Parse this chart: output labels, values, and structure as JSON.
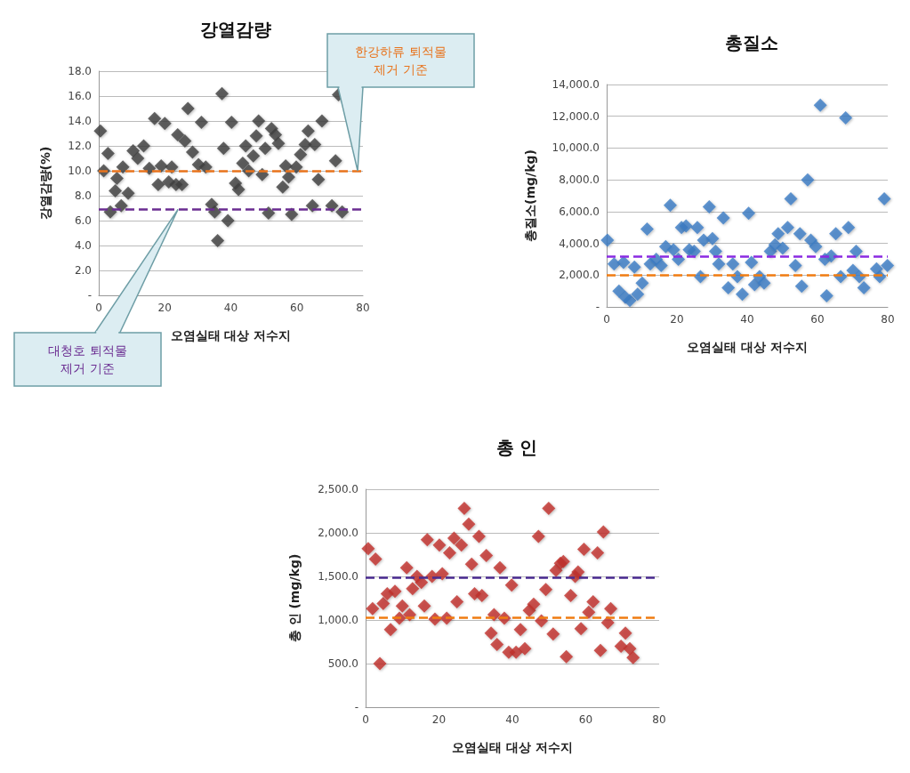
{
  "chart_data": [
    {
      "type": "scatter",
      "title": "강열감량",
      "xlabel": "오염실태 대상 저수지",
      "ylabel": "강열감량(%)",
      "xlim": [
        0,
        80
      ],
      "xticks": [
        0,
        20,
        40,
        60,
        80
      ],
      "ylim": [
        0,
        18
      ],
      "yticks": [
        {
          "value": 0,
          "label": "-"
        },
        {
          "value": 2,
          "label": "2.0"
        },
        {
          "value": 4,
          "label": "4.0"
        },
        {
          "value": 6,
          "label": "6.0"
        },
        {
          "value": 8,
          "label": "8.0"
        },
        {
          "value": 10,
          "label": "10.0"
        },
        {
          "value": 12,
          "label": "12.0"
        },
        {
          "value": 14,
          "label": "14.0"
        },
        {
          "value": 16,
          "label": "16.0"
        },
        {
          "value": 18,
          "label": "18.0"
        }
      ],
      "grid": "y",
      "marker": "diamond",
      "ref_lines": [
        {
          "axis": "y",
          "value": 10,
          "label": "한강하류 퇴적물\n제거 기준",
          "color": "#e8731c",
          "line_style": "dashed"
        },
        {
          "axis": "y",
          "value": 6.9,
          "label": "대청호 퇴적물\n제거 기준",
          "color": "#6a2c91",
          "line_style": "dashed"
        }
      ],
      "series": [
        {
          "color": "#404040",
          "x": [
            0.5,
            2.8,
            1.5,
            3.5,
            5,
            5.5,
            6.8,
            7.3,
            8.9,
            10.4,
            11.8,
            13.6,
            15.3,
            16.9,
            18,
            18.9,
            20,
            21.2,
            22.1,
            23.4,
            23.9,
            25.2,
            26.1,
            27,
            28.4,
            30.2,
            31.1,
            32.4,
            34.2,
            35.1,
            37.3,
            37.8,
            39.1,
            36,
            40.2,
            41.4,
            42.3,
            43.6,
            44.5,
            45.4,
            46.8,
            47.7,
            48.4,
            49.5,
            50.4,
            51.4,
            52.3,
            53.5,
            54.4,
            55.7,
            56.6,
            57.5,
            58.4,
            59.8,
            61.1,
            62.5,
            63.4,
            64.7,
            65.4,
            66.5,
            67.6,
            70.6,
            71.7,
            72.6,
            73.7
          ],
          "values": [
            13.2,
            11.4,
            10.0,
            6.7,
            8.4,
            9.4,
            7.2,
            10.3,
            8.2,
            11.6,
            11.0,
            12.0,
            10.2,
            14.2,
            8.9,
            10.4,
            13.8,
            9.1,
            10.3,
            8.9,
            12.9,
            8.9,
            12.4,
            15.0,
            11.5,
            10.5,
            13.9,
            10.3,
            7.3,
            6.7,
            16.2,
            11.8,
            6.0,
            4.4,
            13.9,
            9.0,
            8.5,
            10.6,
            12.0,
            10.0,
            11.2,
            12.8,
            14.0,
            9.7,
            11.8,
            6.6,
            13.4,
            12.9,
            12.2,
            8.7,
            10.4,
            9.5,
            6.5,
            10.3,
            11.3,
            12.1,
            13.2,
            7.2,
            12.1,
            9.3,
            14.0,
            7.2,
            10.8,
            16.1,
            6.7
          ]
        }
      ]
    },
    {
      "type": "scatter",
      "title": "총질소",
      "xlabel": "오염실태 대상 저수지",
      "ylabel": "총질소(mg/kg)",
      "xlim": [
        0,
        80
      ],
      "xticks": [
        0,
        20,
        40,
        60,
        80
      ],
      "ylim": [
        0,
        14000
      ],
      "yticks": [
        {
          "value": 0,
          "label": "-"
        },
        {
          "value": 2000,
          "label": "2,000.0"
        },
        {
          "value": 4000,
          "label": "4,000.0"
        },
        {
          "value": 6000,
          "label": "6,000.0"
        },
        {
          "value": 8000,
          "label": "8,000.0"
        },
        {
          "value": 10000,
          "label": "10,000.0"
        },
        {
          "value": 12000,
          "label": "12,000.0"
        },
        {
          "value": 14000,
          "label": "14,000.0"
        }
      ],
      "grid": "y",
      "marker": "diamond",
      "ref_lines": [
        {
          "axis": "y",
          "value": 3200,
          "color": "#8a2be2",
          "line_style": "dashed"
        },
        {
          "axis": "y",
          "value": 2000,
          "color": "#f07c12",
          "line_style": "dashed"
        }
      ],
      "series": [
        {
          "color": "#3b7cc4",
          "x": [
            0.2,
            2.1,
            3.5,
            4.8,
            5.3,
            6.6,
            7.9,
            8.8,
            10.1,
            11.5,
            12.4,
            14.1,
            15.5,
            16.8,
            18.1,
            19,
            20.4,
            21.3,
            22.6,
            23.5,
            24.9,
            25.8,
            26.7,
            27.6,
            29.2,
            30.1,
            31,
            31.9,
            33.2,
            34.6,
            35.9,
            37.2,
            38.6,
            40.4,
            41.2,
            42.1,
            43.5,
            44.8,
            46.6,
            47.9,
            48.8,
            50.1,
            51.5,
            52.4,
            53.7,
            55,
            55.5,
            57.2,
            58.1,
            59.5,
            60.8,
            62.1,
            62.6,
            63.9,
            65.2,
            66.6,
            68,
            68.8,
            70.1,
            71,
            71.9,
            73.2,
            76.8,
            77.7,
            79,
            79.9
          ],
          "values": [
            4200,
            2700,
            1000,
            2800,
            600,
            400,
            2500,
            800,
            1500,
            4900,
            2700,
            3000,
            2600,
            3800,
            6400,
            3600,
            3000,
            5000,
            5100,
            3600,
            3500,
            5000,
            1900,
            4200,
            6300,
            4300,
            3500,
            2700,
            5600,
            1200,
            2700,
            1900,
            800,
            5900,
            2800,
            1400,
            1900,
            1500,
            3500,
            3900,
            4600,
            3700,
            5000,
            6800,
            2600,
            4600,
            1300,
            8000,
            4200,
            3800,
            12700,
            3000,
            700,
            3200,
            4600,
            1900,
            11900,
            5000,
            2300,
            3500,
            1900,
            1200,
            2400,
            1900,
            6800,
            2600
          ]
        }
      ]
    },
    {
      "type": "scatter",
      "title": "총 인",
      "xlabel": "오염실태 대상 저수지",
      "ylabel": "총 인 (mg/kg)",
      "xlim": [
        0,
        80
      ],
      "xticks": [
        0,
        20,
        40,
        60,
        80
      ],
      "ylim": [
        0,
        2500
      ],
      "yticks": [
        {
          "value": 0,
          "label": "-"
        },
        {
          "value": 500,
          "label": "500.0"
        },
        {
          "value": 1000,
          "label": "1,000.0"
        },
        {
          "value": 1500,
          "label": "1,500.0"
        },
        {
          "value": 2000,
          "label": "2,000.0"
        },
        {
          "value": 2500,
          "label": "2,500.0"
        }
      ],
      "grid": "y",
      "marker": "diamond",
      "ref_lines": [
        {
          "axis": "y",
          "value": 1490,
          "color": "#4b2c91",
          "line_style": "dashed"
        },
        {
          "axis": "y",
          "value": 1030,
          "color": "#f07c12",
          "line_style": "dashed"
        }
      ],
      "series": [
        {
          "color": "#c0302a",
          "x": [
            0.7,
            2.7,
            1.9,
            3.9,
            4.8,
            5.9,
            6.8,
            8,
            9.2,
            10,
            11.2,
            12,
            12.8,
            14,
            15.2,
            16,
            16.8,
            18.1,
            18.9,
            20.1,
            20.9,
            22.1,
            22.9,
            24.1,
            24.9,
            26.1,
            26.9,
            28.1,
            28.9,
            29.7,
            30.9,
            31.7,
            32.9,
            34.2,
            35,
            35.8,
            36.6,
            37.8,
            39,
            39.8,
            41,
            42.2,
            43.4,
            44.6,
            45.8,
            47.1,
            47.9,
            49.1,
            49.9,
            51.1,
            51.9,
            53.1,
            53.9,
            54.7,
            55.9,
            57.1,
            57.9,
            58.7,
            59.5,
            60.8,
            62,
            63.2,
            64,
            64.8,
            66,
            66.8,
            69.6,
            70.8,
            72,
            72.9
          ],
          "values": [
            1820,
            1700,
            1130,
            500,
            1190,
            1300,
            890,
            1330,
            1020,
            1160,
            1600,
            1060,
            1360,
            1500,
            1430,
            1160,
            1920,
            1500,
            1010,
            1860,
            1530,
            1020,
            1770,
            1940,
            1210,
            1860,
            2280,
            2100,
            1640,
            1300,
            1960,
            1280,
            1740,
            850,
            1060,
            720,
            1600,
            1020,
            630,
            1400,
            630,
            890,
            670,
            1110,
            1180,
            1960,
            990,
            1350,
            2280,
            840,
            1570,
            1650,
            1670,
            580,
            1280,
            1500,
            1550,
            900,
            1810,
            1090,
            1210,
            1770,
            650,
            2010,
            970,
            1130,
            700,
            850,
            670,
            570
          ]
        }
      ]
    }
  ]
}
